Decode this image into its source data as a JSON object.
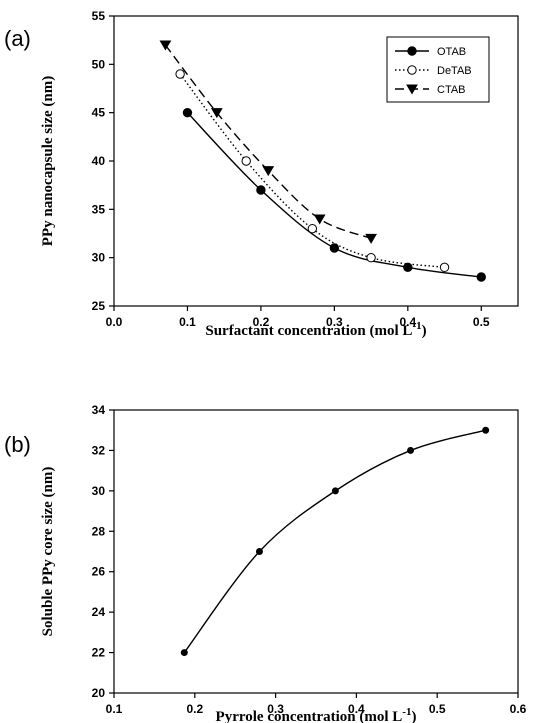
{
  "chart_data": [
    {
      "panel": "(a)",
      "type": "line",
      "xlabel": "Surfactant concentration (mol L",
      "xlabel_sup": "-1",
      "xlabel_end": ")",
      "ylabel": "PPy nanocapsule size (nm)",
      "xlim": [
        0.0,
        0.55
      ],
      "ylim": [
        25,
        55
      ],
      "xticks": [
        "0.0",
        "0.1",
        "0.2",
        "0.3",
        "0.4",
        "0.5"
      ],
      "yticks": [
        "25",
        "30",
        "35",
        "40",
        "45",
        "50",
        "55"
      ],
      "legend_position": "top-right",
      "grid": false,
      "series": [
        {
          "name": "OTAB",
          "marker": "filled-circle",
          "line": "solid",
          "x": [
            0.1,
            0.2,
            0.3,
            0.4,
            0.5
          ],
          "y": [
            45,
            37,
            31,
            29,
            28
          ]
        },
        {
          "name": "DeTAB",
          "marker": "open-circle",
          "line": "dotted",
          "x": [
            0.09,
            0.18,
            0.27,
            0.35,
            0.45
          ],
          "y": [
            49,
            40,
            33,
            30,
            29
          ]
        },
        {
          "name": "CTAB",
          "marker": "filled-triangle-down",
          "line": "dashed",
          "x": [
            0.07,
            0.14,
            0.21,
            0.28,
            0.35
          ],
          "y": [
            52,
            45,
            39,
            34,
            32
          ]
        }
      ]
    },
    {
      "panel": "(b)",
      "type": "line",
      "xlabel": "Pyrrole concentration (mol L",
      "xlabel_sup": "-1",
      "xlabel_end": ")",
      "ylabel": "Soluble PPy core size (nm)",
      "xlim": [
        0.1,
        0.6
      ],
      "ylim": [
        20,
        34
      ],
      "xticks": [
        "0.1",
        "0.2",
        "0.3",
        "0.4",
        "0.5",
        "0.6"
      ],
      "yticks": [
        "20",
        "22",
        "24",
        "26",
        "28",
        "30",
        "32",
        "34"
      ],
      "grid": false,
      "series": [
        {
          "marker": "filled-circle-small",
          "line": "solid",
          "x": [
            0.187,
            0.28,
            0.374,
            0.467,
            0.56
          ],
          "y": [
            22,
            27,
            30,
            32,
            33
          ]
        }
      ]
    }
  ]
}
